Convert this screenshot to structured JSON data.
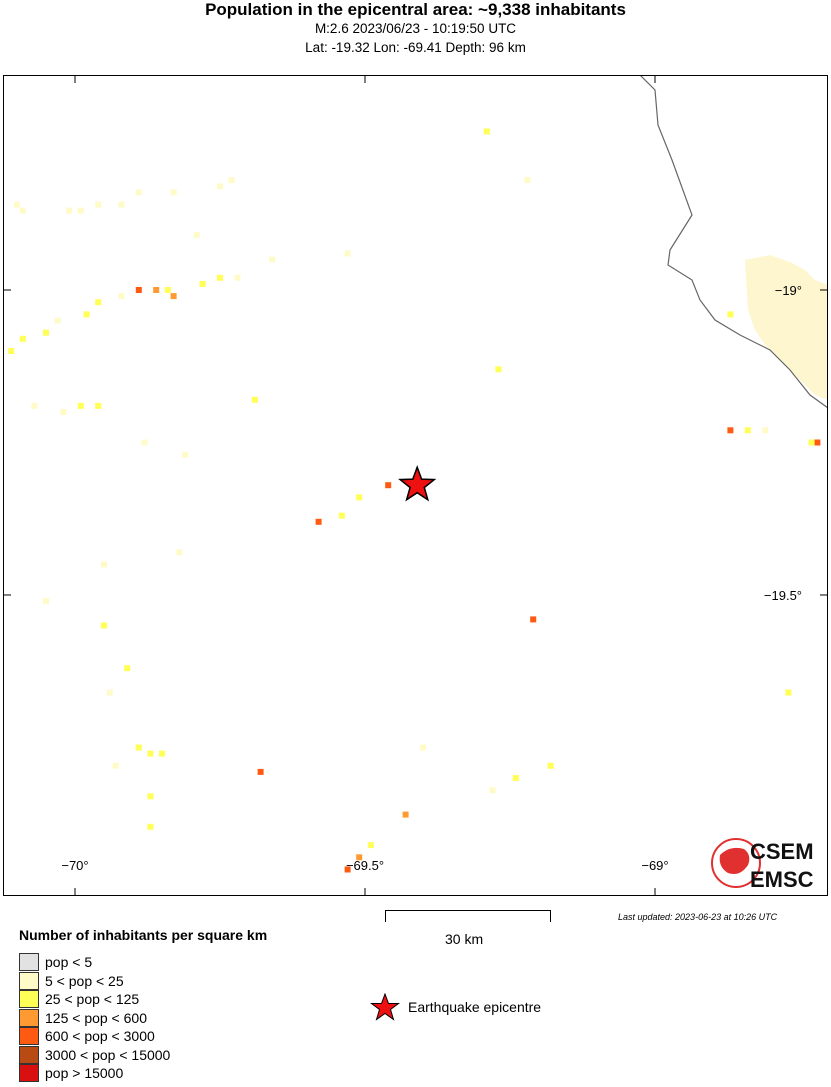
{
  "header": {
    "title": "Population in the epicentral area: ~9,338 inhabitants",
    "line2": "M:2.6 2023/06/23 - 10:19:50 UTC",
    "line3": "Lat: -19.32 Lon: -69.41 Depth: 96 km"
  },
  "map": {
    "lon_range": [
      -70.125,
      -68.702
    ],
    "lat_range": [
      -18.74,
      -20.095
    ],
    "lon_ticks": [
      {
        "v": -70,
        "label": "−70°"
      },
      {
        "v": -69.5,
        "label": "−69.5°"
      },
      {
        "v": -69,
        "label": "−69°"
      }
    ],
    "lat_ticks": [
      {
        "v": -19,
        "label": "−19°"
      },
      {
        "v": -19.5,
        "label": "−19.5°"
      }
    ],
    "epicenter": {
      "lat": -19.32,
      "lon": -69.41,
      "color": "#ee1111"
    },
    "cells": [
      [
        -69.29,
        -18.74,
        2
      ],
      [
        -69.22,
        -18.82,
        1
      ],
      [
        -70.1,
        -18.86,
        1
      ],
      [
        -70.09,
        -18.87,
        1
      ],
      [
        -70.01,
        -18.87,
        1
      ],
      [
        -69.99,
        -18.87,
        1
      ],
      [
        -69.96,
        -18.86,
        1
      ],
      [
        -69.92,
        -18.86,
        1
      ],
      [
        -69.89,
        -18.84,
        1
      ],
      [
        -69.83,
        -18.84,
        1
      ],
      [
        -69.75,
        -18.83,
        1
      ],
      [
        -69.73,
        -18.82,
        1
      ],
      [
        -69.79,
        -18.91,
        1
      ],
      [
        -69.66,
        -18.95,
        1
      ],
      [
        -69.53,
        -18.94,
        1
      ],
      [
        -70.11,
        -19.1,
        2
      ],
      [
        -70.09,
        -19.08,
        2
      ],
      [
        -70.05,
        -19.07,
        2
      ],
      [
        -70.03,
        -19.05,
        1
      ],
      [
        -69.98,
        -19.04,
        2
      ],
      [
        -69.96,
        -19.02,
        2
      ],
      [
        -69.92,
        -19.01,
        1
      ],
      [
        -69.89,
        -19.0,
        4
      ],
      [
        -69.86,
        -19.0,
        3
      ],
      [
        -69.84,
        -19.0,
        2
      ],
      [
        -69.83,
        -19.01,
        3
      ],
      [
        -69.78,
        -18.99,
        2
      ],
      [
        -69.75,
        -18.98,
        2
      ],
      [
        -69.72,
        -18.98,
        1
      ],
      [
        -70.07,
        -19.19,
        1
      ],
      [
        -70.02,
        -19.2,
        1
      ],
      [
        -69.99,
        -19.19,
        2
      ],
      [
        -69.96,
        -19.19,
        2
      ],
      [
        -69.69,
        -19.18,
        2
      ],
      [
        -69.88,
        -19.25,
        1
      ],
      [
        -69.81,
        -19.27,
        1
      ],
      [
        -69.27,
        -19.13,
        2
      ],
      [
        -69.46,
        -19.32,
        4
      ],
      [
        -69.51,
        -19.34,
        2
      ],
      [
        -69.54,
        -19.37,
        2
      ],
      [
        -69.58,
        -19.38,
        4
      ],
      [
        -69.82,
        -19.43,
        1
      ],
      [
        -69.95,
        -19.45,
        1
      ],
      [
        -70.05,
        -19.51,
        1
      ],
      [
        -69.95,
        -19.55,
        2
      ],
      [
        -69.91,
        -19.62,
        2
      ],
      [
        -69.94,
        -19.66,
        1
      ],
      [
        -69.21,
        -19.54,
        4
      ],
      [
        -68.77,
        -19.66,
        2
      ],
      [
        -68.87,
        -19.04,
        2
      ],
      [
        -68.87,
        -19.23,
        4
      ],
      [
        -68.84,
        -19.23,
        2
      ],
      [
        -68.81,
        -19.23,
        1
      ],
      [
        -68.72,
        -19.25,
        4
      ],
      [
        -68.73,
        -19.25,
        2
      ],
      [
        -69.89,
        -19.75,
        2
      ],
      [
        -69.87,
        -19.76,
        2
      ],
      [
        -69.85,
        -19.76,
        2
      ],
      [
        -69.93,
        -19.78,
        1
      ],
      [
        -69.68,
        -19.79,
        4
      ],
      [
        -69.4,
        -19.75,
        1
      ],
      [
        -69.24,
        -19.8,
        2
      ],
      [
        -69.18,
        -19.78,
        2
      ],
      [
        -69.28,
        -19.82,
        1
      ],
      [
        -69.87,
        -19.83,
        2
      ],
      [
        -69.87,
        -19.88,
        2
      ],
      [
        -69.43,
        -19.86,
        3
      ],
      [
        -69.49,
        -19.91,
        2
      ],
      [
        -69.51,
        -19.93,
        3
      ],
      [
        -69.53,
        -19.95,
        4
      ],
      [
        -69.78,
        -20.0,
        1
      ]
    ]
  },
  "logo": {
    "text1": "CSEM",
    "text2": "EMSC"
  },
  "updated": "Last updated: 2023-06-23 at 10:26 UTC",
  "scale_bar": {
    "label": "30 km"
  },
  "legend": {
    "title": "Number of inhabitants per square km",
    "items": [
      {
        "label": "pop < 5",
        "color": "#e2e2e2"
      },
      {
        "label": "5 < pop < 25",
        "color": "#fffbc8"
      },
      {
        "label": "25 < pop < 125",
        "color": "#ffff55"
      },
      {
        "label": "125 < pop < 600",
        "color": "#ff9a33"
      },
      {
        "label": "600 < pop < 3000",
        "color": "#ff5a12"
      },
      {
        "label": "3000 < pop < 15000",
        "color": "#b84a14"
      },
      {
        "label": "pop > 15000",
        "color": "#d81010"
      }
    ],
    "epicentre_label": "Earthquake epicentre"
  }
}
